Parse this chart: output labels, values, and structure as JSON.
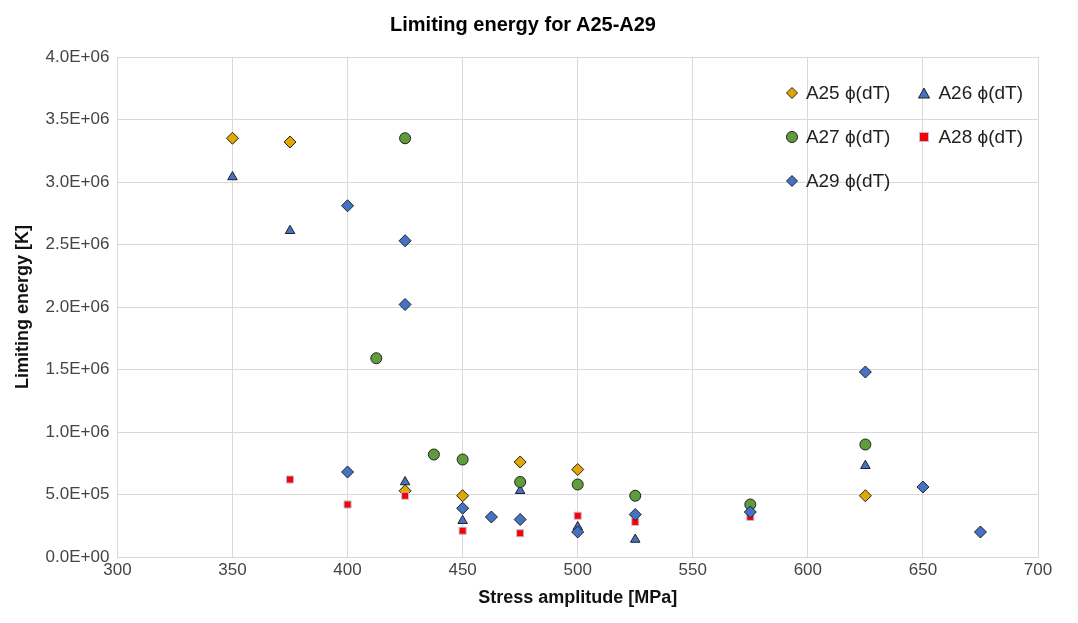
{
  "chart_data": {
    "type": "scatter",
    "title": "Limiting energy for A25-A29",
    "xlabel": "Stress amplitude [MPa]",
    "ylabel": "Limiting energy [K]",
    "xlim": [
      300,
      700
    ],
    "xticks": [
      300,
      350,
      400,
      450,
      500,
      550,
      600,
      650,
      700
    ],
    "ylim": [
      0,
      4000000
    ],
    "yticks": [
      {
        "value": 0,
        "label": "0.0E+00"
      },
      {
        "value": 500000,
        "label": "5.0E+05"
      },
      {
        "value": 1000000,
        "label": "1.0E+06"
      },
      {
        "value": 1500000,
        "label": "1.5E+06"
      },
      {
        "value": 2000000,
        "label": "2.0E+06"
      },
      {
        "value": 2500000,
        "label": "2.5E+06"
      },
      {
        "value": 3000000,
        "label": "3.0E+06"
      },
      {
        "value": 3500000,
        "label": "3.5E+06"
      },
      {
        "value": 4000000,
        "label": "4.0E+06"
      }
    ],
    "grid": true,
    "legend": "top right",
    "series": [
      {
        "name": "A25 ϕ(dT)",
        "color": "#e0a800",
        "marker": "diamond",
        "x": [
          350,
          375,
          425,
          450,
          475,
          500,
          625
        ],
        "values": [
          3350000,
          3320000,
          530000,
          490000,
          760000,
          700000,
          490000
        ]
      },
      {
        "name": "A26 ϕ(dT)",
        "color": "#4472c4",
        "marker": "triangle",
        "x": [
          350,
          375,
          425,
          450,
          475,
          500,
          525,
          625
        ],
        "values": [
          3040000,
          2610000,
          600000,
          290000,
          530000,
          240000,
          140000,
          730000
        ]
      },
      {
        "name": "A27 ϕ(dT)",
        "color": "#5e9c3c",
        "marker": "circle",
        "x": [
          412.5,
          425,
          437.5,
          450,
          475,
          500,
          525,
          575,
          625
        ],
        "values": [
          1590000,
          3350000,
          820000,
          780000,
          600000,
          580000,
          490000,
          420000,
          900000
        ]
      },
      {
        "name": "A28 ϕ(dT)",
        "color": "#ff0000",
        "marker": "square",
        "x": [
          375,
          400,
          425,
          450,
          475,
          500,
          525,
          575
        ],
        "values": [
          620000,
          420000,
          490000,
          210000,
          190000,
          330000,
          280000,
          320000
        ]
      },
      {
        "name": "A29 ϕ(dT)",
        "color": "#4472c4",
        "marker": "diamond",
        "x": [
          400,
          425,
          425,
          400,
          450,
          462.5,
          475,
          500,
          525,
          575,
          625,
          650,
          675
        ],
        "values": [
          2810000,
          2530000,
          2020000,
          680000,
          390000,
          320000,
          300000,
          200000,
          340000,
          360000,
          1480000,
          560000,
          200000
        ]
      }
    ]
  }
}
